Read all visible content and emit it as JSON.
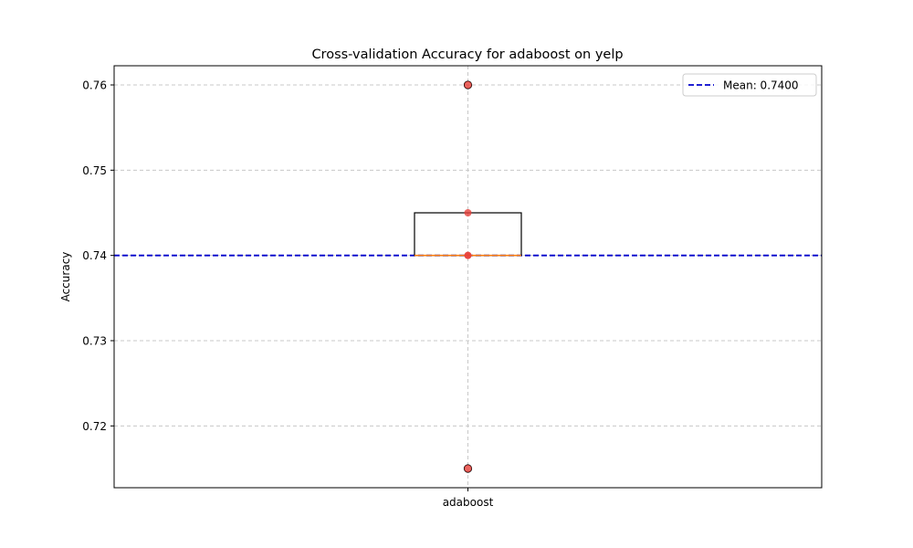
{
  "chart_data": {
    "type": "box",
    "title": "Cross-validation Accuracy for adaboost on yelp",
    "xlabel": "",
    "ylabel": "Accuracy",
    "categories": [
      "adaboost"
    ],
    "ylim": [
      0.71275,
      0.76225
    ],
    "yticks": [
      0.72,
      0.73,
      0.74,
      0.75,
      0.76
    ],
    "ytick_labels": [
      "0.72",
      "0.73",
      "0.74",
      "0.75",
      "0.76"
    ],
    "grid": true,
    "legend_position": "top-right",
    "box": {
      "q1": 0.74,
      "median": 0.74,
      "q3": 0.745,
      "whisker_low": 0.74,
      "whisker_high": 0.745,
      "outliers": [
        0.76,
        0.715
      ]
    },
    "points": [
      0.76,
      0.745,
      0.74,
      0.74,
      0.715
    ],
    "mean_line": {
      "value": 0.74,
      "label": "Mean: 0.7400"
    },
    "colors": {
      "box": "#000000",
      "median": "#ff7f0e",
      "points": "#e8413b",
      "mean_line": "#0000cc",
      "grid": "#c8c8c8"
    }
  }
}
